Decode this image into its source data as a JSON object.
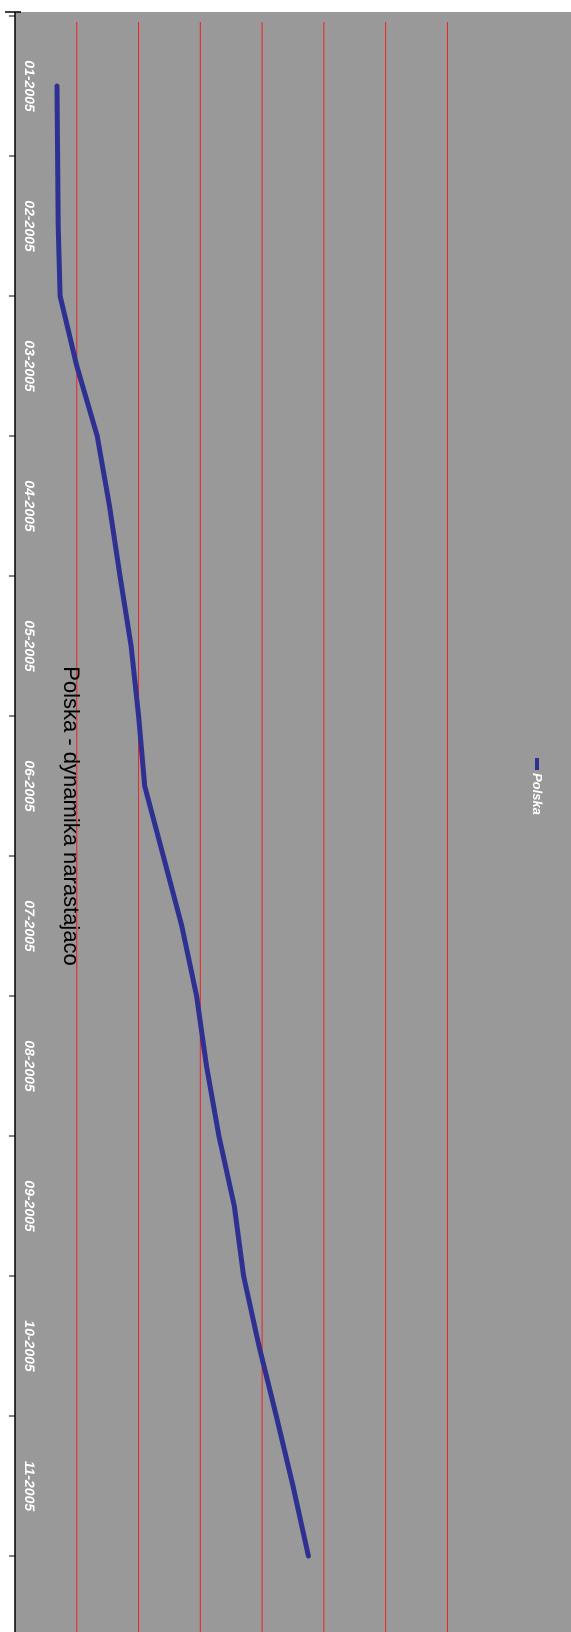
{
  "chart_data": {
    "type": "line",
    "title": "Polska - dynamika narastajaco",
    "xlabel": "",
    "ylabel": "",
    "categories": [
      "01-2005",
      "02-2005",
      "03-2005",
      "04-2005",
      "05-2005",
      "06-2005",
      "07-2005",
      "08-2005",
      "09-2005",
      "10-2005",
      "11-2005"
    ],
    "x": [
      0.5,
      1.0,
      1.5,
      2.0,
      2.5,
      3.0,
      3.5,
      4.0,
      4.5,
      5.0,
      5.5,
      6.0,
      6.5,
      7.0,
      7.5,
      8.0,
      8.5,
      9.0,
      9.5,
      10.0,
      10.5,
      11.0
    ],
    "series": [
      {
        "name": "Polska",
        "color": "#2e3192",
        "values": [
          0.68,
          0.69,
          0.7,
          0.73,
          1.0,
          1.33,
          1.53,
          1.7,
          1.88,
          2.0,
          2.1,
          2.4,
          2.7,
          2.94,
          3.1,
          3.3,
          3.55,
          3.7,
          3.95,
          4.23,
          4.5,
          4.75
        ]
      }
    ],
    "ylim": [
      0,
      9
    ],
    "gridlines": [
      1,
      2,
      3,
      4,
      5,
      6,
      7
    ],
    "grid": true,
    "legend_position": "bottom",
    "orientation": "rotated 90 degrees clockwise",
    "colors": {
      "plot_background": "#999999",
      "gridline": "#ee2222",
      "series": "#2e3192",
      "tick_label": "#ffffff",
      "page_background": "#ffffff"
    }
  }
}
